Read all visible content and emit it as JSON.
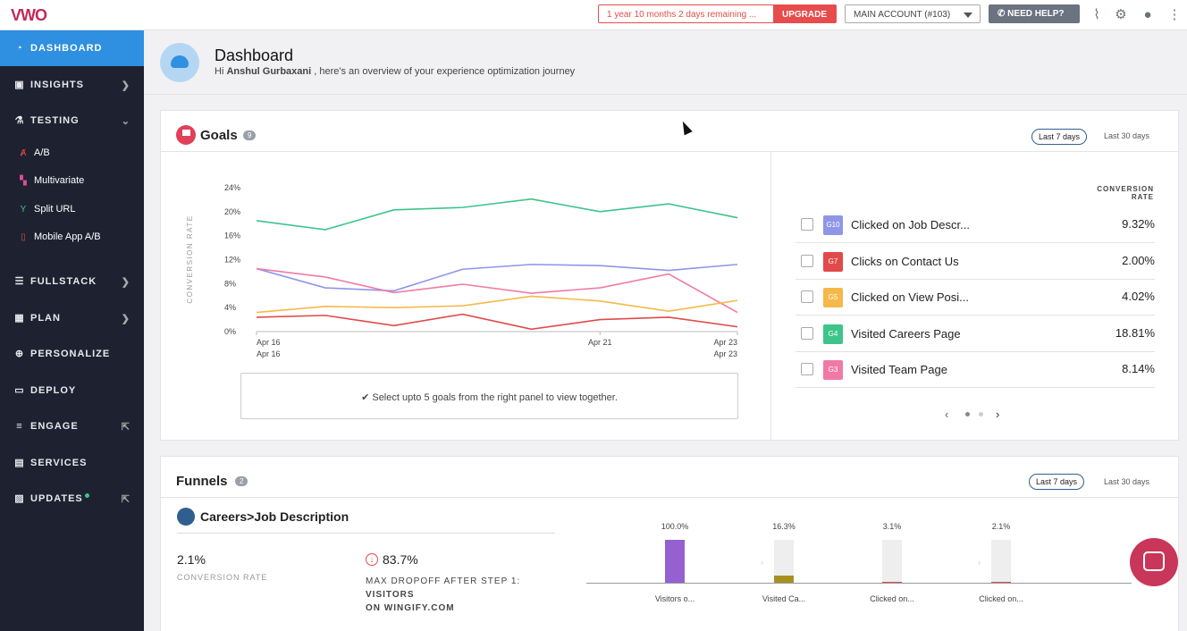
{
  "topbar": {
    "logo": "VWO",
    "trial_text": "1 year 10 months 2 days remaining ...",
    "upgrade_label": "UPGRADE",
    "account_label": "MAIN ACCOUNT (#103)",
    "help_label": "NEED HELP?"
  },
  "sidebar": {
    "dashboard": "DASHBOARD",
    "insights": "INSIGHTS",
    "testing": "TESTING",
    "ab": "A/B",
    "multivariate": "Multivariate",
    "split_url": "Split URL",
    "mobile_ab": "Mobile App A/B",
    "fullstack": "FULLSTACK",
    "plan": "PLAN",
    "personalize": "PERSONALIZE",
    "deploy": "DEPLOY",
    "engage": "ENGAGE",
    "services": "SERVICES",
    "updates": "UPDATES"
  },
  "header": {
    "title": "Dashboard",
    "greeting_prefix": "Hi",
    "user_name": "Anshul Gurbaxani",
    "greeting_suffix": ", here's an overview of your experience optimization journey"
  },
  "goals": {
    "title": "Goals",
    "count": "9",
    "tab_7": "Last 7 days",
    "tab_30": "Last 30 days",
    "col_header_1": "CONVERSION",
    "col_header_2": "RATE",
    "note": "✔ Select upto 5 goals from the right panel to view together.",
    "items": [
      {
        "code": "G10",
        "name": "Clicked on Job Descr...",
        "rate": "9.32%",
        "color": "#8f96e8"
      },
      {
        "code": "G7",
        "name": "Clicks on Contact Us",
        "rate": "2.00%",
        "color": "#e04a4a"
      },
      {
        "code": "G5",
        "name": "Clicked on View Posi...",
        "rate": "4.02%",
        "color": "#f5b94a"
      },
      {
        "code": "G4",
        "name": "Visited Careers Page",
        "rate": "18.81%",
        "color": "#3ec48a"
      },
      {
        "code": "G3",
        "name": "Visited Team Page",
        "rate": "8.14%",
        "color": "#f07aa6"
      }
    ]
  },
  "chart_data": {
    "type": "line",
    "ylabel": "CONVERSION RATE",
    "yticks": [
      "0%",
      "4%",
      "8%",
      "12%",
      "16%",
      "20%",
      "24%"
    ],
    "ylim": [
      0,
      24
    ],
    "x": [
      "Apr 16",
      "Apr 17",
      "Apr 18",
      "Apr 19",
      "Apr 20",
      "Apr 21",
      "Apr 22",
      "Apr 23"
    ],
    "xtick_labels": [
      "Apr 16",
      "Apr 21",
      "Apr 23"
    ],
    "xtick_sub_left": "Apr 16",
    "xtick_sub_right": "Apr 23",
    "series": [
      {
        "color": "#3ec48a",
        "values": [
          18.5,
          17,
          20.3,
          20.7,
          22.1,
          20,
          21.3,
          19
        ]
      },
      {
        "color": "#8f96e8",
        "values": [
          10.5,
          7.3,
          6.8,
          10.4,
          11.2,
          11,
          10.2,
          11.2
        ]
      },
      {
        "color": "#f07aa6",
        "values": [
          10.5,
          9.1,
          6.5,
          7.9,
          6.4,
          7.3,
          9.6,
          3.2
        ]
      },
      {
        "color": "#f5b94a",
        "values": [
          3.2,
          4.2,
          4,
          4.3,
          5.9,
          5.1,
          3.4,
          5.2
        ]
      },
      {
        "color": "#e04a4a",
        "values": [
          2.4,
          2.7,
          1,
          2.9,
          0.4,
          2,
          2.4,
          0.8
        ]
      }
    ]
  },
  "funnels": {
    "title": "Funnels",
    "count": "2",
    "tab_7": "Last 7 days",
    "tab_30": "Last 30 days",
    "funnel_name": "Careers>Job Description",
    "conv_value": "2.1%",
    "conv_label": "CONVERSION RATE",
    "drop_value": "83.7%",
    "drop_label_1": "MAX DROPOFF AFTER STEP 1:",
    "drop_label_2": "VISITORS",
    "drop_label_3": "ON WINGIFY.COM",
    "steps": [
      {
        "pct": "100.0%",
        "label": "Visitors o..."
      },
      {
        "pct": "16.3%",
        "label": "Visited Ca..."
      },
      {
        "pct": "3.1%",
        "label": "Clicked on..."
      },
      {
        "pct": "2.1%",
        "label": "Clicked on..."
      }
    ]
  }
}
